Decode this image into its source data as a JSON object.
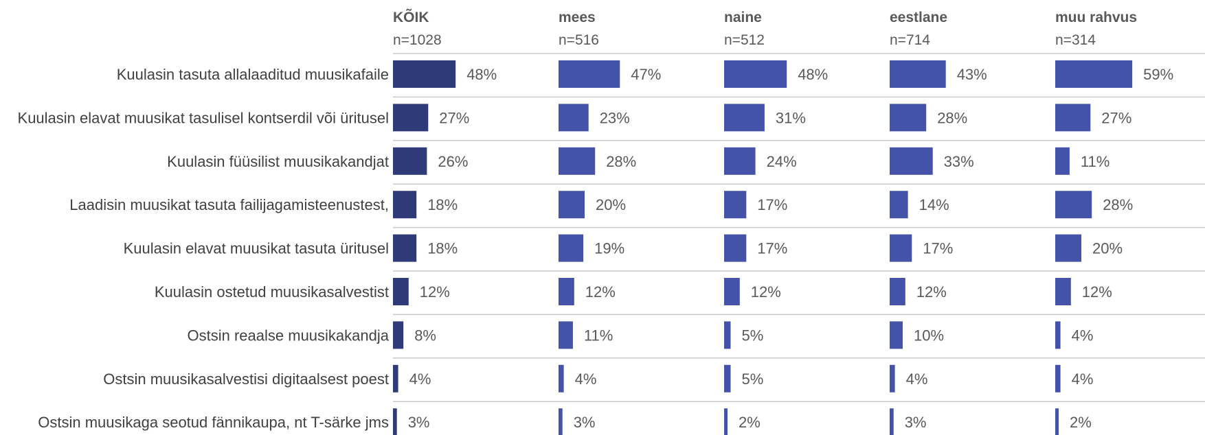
{
  "chart_data": {
    "type": "bar",
    "orientation": "horizontal",
    "layout": "small-multiples",
    "unit": "%",
    "categories": [
      "Kuulasin tasuta allalaaditud muusikafaile",
      "Kuulasin elavat muusikat tasulisel kontserdil või üritusel",
      "Kuulasin füüsilist muusikakandjat",
      "Laadisin muusikat tasuta failijagamisteenustest,",
      "Kuulasin elavat muusikat tasuta üritusel",
      "Kuulasin ostetud muusikasalvestist",
      "Ostsin reaalse muusikakandja",
      "Ostsin muusikasalvestisi digitaalsest poest",
      "Ostsin muusikaga seotud fännikaupa, nt T-särke jms"
    ],
    "series": [
      {
        "name": "KÕIK",
        "n_label": "n=1028",
        "color": "#2f3a78",
        "values": [
          48,
          27,
          26,
          18,
          18,
          12,
          8,
          4,
          3
        ]
      },
      {
        "name": "mees",
        "n_label": "n=516",
        "color": "#4453a8",
        "values": [
          47,
          23,
          28,
          20,
          19,
          12,
          11,
          4,
          3
        ]
      },
      {
        "name": "naine",
        "n_label": "n=512",
        "color": "#4453a8",
        "values": [
          48,
          31,
          24,
          17,
          17,
          12,
          5,
          5,
          2
        ]
      },
      {
        "name": "eestlane",
        "n_label": "n=714",
        "color": "#4453a8",
        "values": [
          43,
          28,
          33,
          14,
          17,
          12,
          10,
          4,
          3
        ]
      },
      {
        "name": "muu rahvus",
        "n_label": "n=314",
        "color": "#4453a8",
        "values": [
          59,
          27,
          11,
          28,
          20,
          12,
          4,
          4,
          2
        ]
      }
    ],
    "xlim": [
      0,
      100
    ],
    "grid": false,
    "legend": "none"
  }
}
